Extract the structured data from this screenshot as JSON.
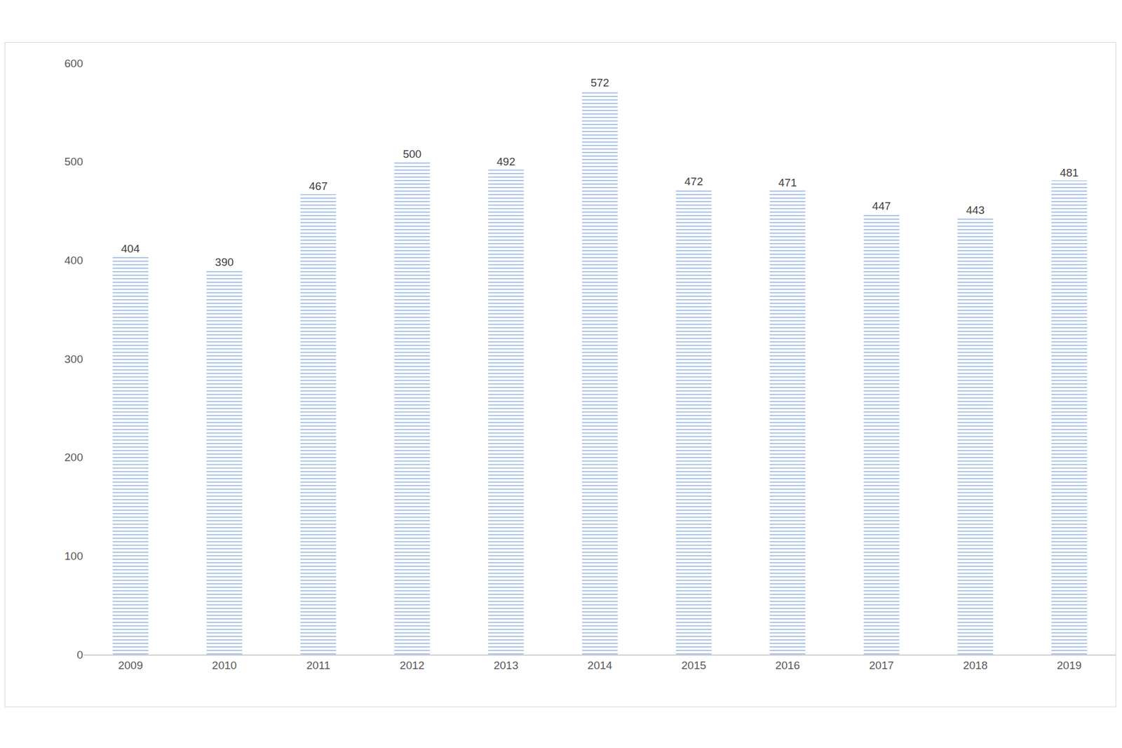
{
  "chart_data": {
    "type": "bar",
    "categories": [
      "2009",
      "2010",
      "2011",
      "2012",
      "2013",
      "2014",
      "2015",
      "2016",
      "2017",
      "2018",
      "2019"
    ],
    "values": [
      404,
      390,
      467,
      500,
      492,
      572,
      472,
      471,
      447,
      443,
      481
    ],
    "color": "#5b8fd6",
    "ylim": [
      0,
      600
    ],
    "yticks": [
      0,
      100,
      200,
      300,
      400,
      500,
      600
    ],
    "grid": false,
    "data_labels": true
  }
}
